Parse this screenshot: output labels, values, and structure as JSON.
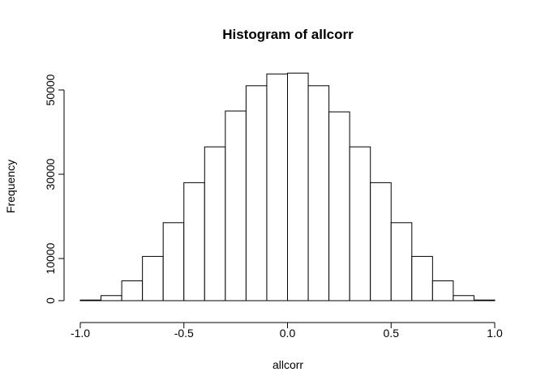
{
  "chart_data": {
    "type": "bar",
    "subtype": "histogram",
    "title": "Histogram of allcorr",
    "xlabel": "allcorr",
    "ylabel": "Frequency",
    "xlim": [
      -1.0,
      1.0
    ],
    "ylim": [
      0,
      52000
    ],
    "grid": false,
    "x_ticks": [
      -1.0,
      -0.5,
      0.0,
      0.5,
      1.0
    ],
    "x_tick_labels": [
      "-1.0",
      "-0.5",
      "0.0",
      "0.5",
      "1.0"
    ],
    "y_ticks": [
      0,
      10000,
      30000,
      50000
    ],
    "y_tick_labels": [
      "0",
      "10000",
      "30000",
      "50000"
    ],
    "bins": [
      {
        "lo": -1.0,
        "hi": -0.9,
        "value": 150
      },
      {
        "lo": -0.9,
        "hi": -0.8,
        "value": 1200
      },
      {
        "lo": -0.8,
        "hi": -0.7,
        "value": 4700
      },
      {
        "lo": -0.7,
        "hi": -0.6,
        "value": 10500
      },
      {
        "lo": -0.6,
        "hi": -0.5,
        "value": 18500
      },
      {
        "lo": -0.5,
        "hi": -0.4,
        "value": 28000
      },
      {
        "lo": -0.4,
        "hi": -0.3,
        "value": 36500
      },
      {
        "lo": -0.3,
        "hi": -0.2,
        "value": 45000
      },
      {
        "lo": -0.2,
        "hi": -0.1,
        "value": 51000
      },
      {
        "lo": -0.1,
        "hi": 0.0,
        "value": 53800
      },
      {
        "lo": 0.0,
        "hi": 0.1,
        "value": 54000
      },
      {
        "lo": 0.1,
        "hi": 0.2,
        "value": 51000
      },
      {
        "lo": 0.2,
        "hi": 0.3,
        "value": 44800
      },
      {
        "lo": 0.3,
        "hi": 0.4,
        "value": 36500
      },
      {
        "lo": 0.4,
        "hi": 0.5,
        "value": 28000
      },
      {
        "lo": 0.5,
        "hi": 0.6,
        "value": 18500
      },
      {
        "lo": 0.6,
        "hi": 0.7,
        "value": 10500
      },
      {
        "lo": 0.7,
        "hi": 0.8,
        "value": 4700
      },
      {
        "lo": 0.8,
        "hi": 0.9,
        "value": 1200
      },
      {
        "lo": 0.9,
        "hi": 1.0,
        "value": 150
      }
    ]
  }
}
